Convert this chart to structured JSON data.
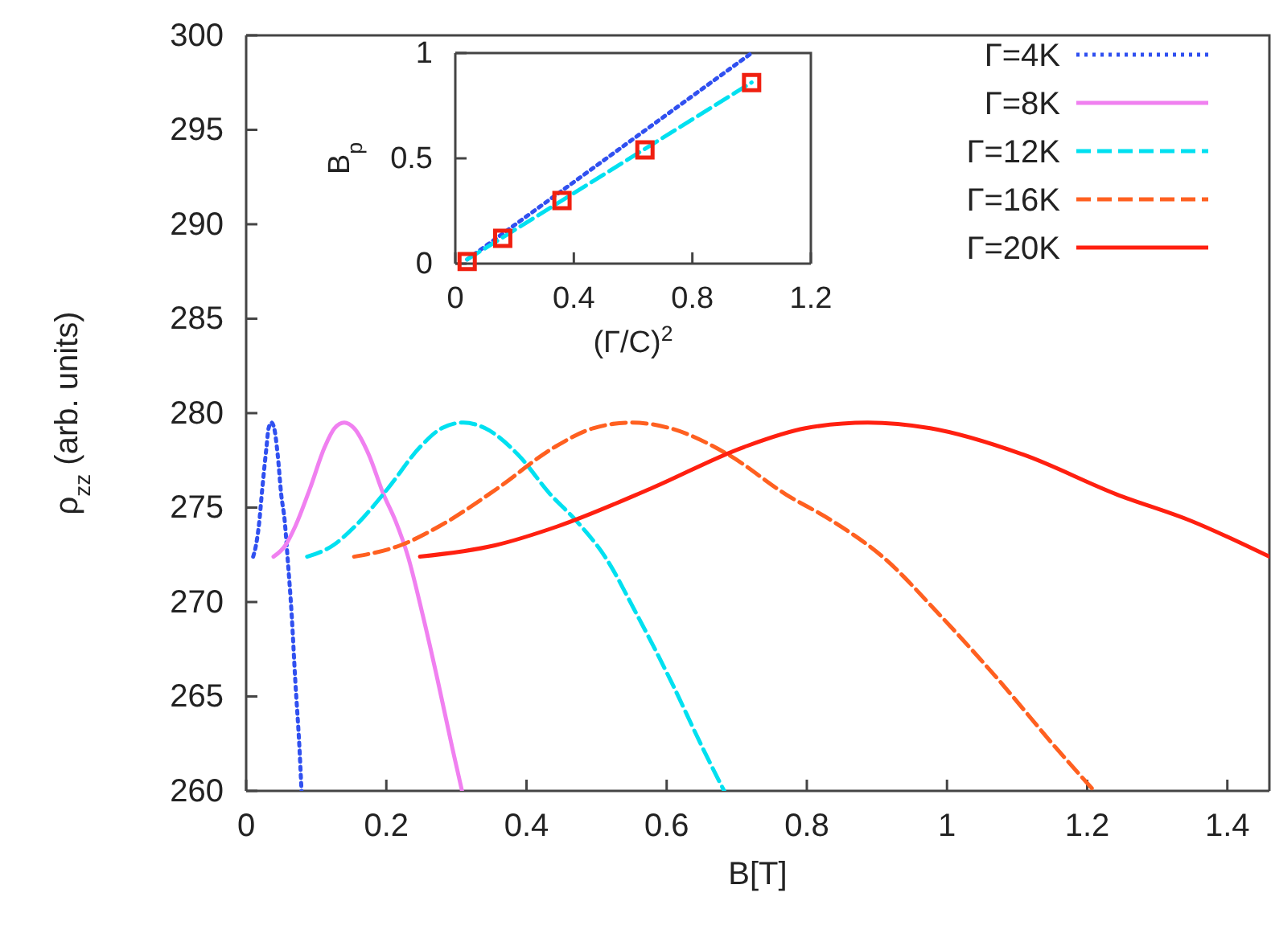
{
  "chart_data": [
    {
      "type": "line",
      "xlabel": "B[T]",
      "ylabel": "ρ$_{zz}$ (arb. units)",
      "xlim": [
        0,
        1.46
      ],
      "ylim": [
        260,
        300
      ],
      "xticks": [
        0,
        0.2,
        0.4,
        0.6,
        0.8,
        1,
        1.2,
        1.4
      ],
      "yticks": [
        260,
        265,
        270,
        275,
        280,
        285,
        290,
        295,
        300
      ],
      "legend": "top right",
      "series": [
        {
          "name": "Γ=4K",
          "color": "#3050f0",
          "line_style": "dotted",
          "x": [
            0.01,
            0.014,
            0.018,
            0.023,
            0.029,
            0.032,
            0.036,
            0.04,
            0.045,
            0.05,
            0.055,
            0.059,
            0.065,
            0.07,
            0.076,
            0.079
          ],
          "values": [
            272.4,
            273.0,
            274.0,
            276.0,
            278.2,
            279.2,
            279.5,
            279.2,
            277.8,
            275.7,
            274.3,
            272.4,
            269.3,
            265.9,
            262.3,
            260
          ]
        },
        {
          "name": "Γ=8K",
          "color": "#f080f0",
          "line_style": "solid",
          "x": [
            0.039,
            0.056,
            0.07,
            0.091,
            0.112,
            0.126,
            0.14,
            0.154,
            0.175,
            0.196,
            0.213,
            0.231,
            0.252,
            0.273,
            0.294,
            0.308
          ],
          "values": [
            272.4,
            273.0,
            274.0,
            276.0,
            278.2,
            279.2,
            279.5,
            279.2,
            277.8,
            275.7,
            274.3,
            272.4,
            269.3,
            265.9,
            262.3,
            260
          ]
        },
        {
          "name": "Γ=12K",
          "color": "#00e0f0",
          "line_style": "dashed",
          "x": [
            0.087,
            0.124,
            0.155,
            0.202,
            0.248,
            0.279,
            0.31,
            0.341,
            0.388,
            0.434,
            0.471,
            0.512,
            0.558,
            0.605,
            0.651,
            0.682
          ],
          "values": [
            272.4,
            273.0,
            274.0,
            276.0,
            278.2,
            279.2,
            279.5,
            279.2,
            277.8,
            275.7,
            274.3,
            272.4,
            269.3,
            265.9,
            262.3,
            260
          ]
        },
        {
          "name": "Γ=16K",
          "color": "#ff6020",
          "line_style": "dashed",
          "x": [
            0.154,
            0.22,
            0.275,
            0.358,
            0.44,
            0.495,
            0.55,
            0.605,
            0.688,
            0.77,
            0.836,
            0.908,
            0.99,
            1.073,
            1.155,
            1.21
          ],
          "values": [
            272.4,
            273.0,
            274.0,
            276.0,
            278.2,
            279.2,
            279.5,
            279.2,
            277.8,
            275.7,
            274.3,
            272.4,
            269.3,
            265.9,
            262.3,
            260
          ]
        },
        {
          "name": "Γ=20K",
          "color": "#ff2010",
          "line_style": "solid",
          "x": [
            0.248,
            0.355,
            0.444,
            0.577,
            0.71,
            0.798,
            0.887,
            0.976,
            1.109,
            1.242,
            1.348,
            1.46
          ],
          "values": [
            272.4,
            273.0,
            274.0,
            276.0,
            278.2,
            279.2,
            279.5,
            279.2,
            277.8,
            275.7,
            274.3,
            272.4
          ]
        }
      ]
    },
    {
      "type": "line",
      "xlabel": "(Γ/C)$^{2}$",
      "ylabel": "B$_{p}$",
      "xlim": [
        0,
        1.2
      ],
      "ylim": [
        0,
        1
      ],
      "xticks": [
        0,
        0.4,
        0.8,
        1.2
      ],
      "yticks": [
        0,
        0.5,
        1
      ],
      "series": [
        {
          "color": "#3050f0",
          "line_style": "dotted",
          "x": [
            0.04,
            1.0
          ],
          "values": [
            0.02,
            1.0
          ]
        },
        {
          "color": "#00e0f0",
          "line_style": "dashed",
          "x": [
            0.04,
            1.0
          ],
          "values": [
            0.02,
            0.86
          ]
        },
        {
          "type": "scatter",
          "marker": "square",
          "color": "#f02010",
          "x": [
            0.04,
            0.16,
            0.36,
            0.64,
            1.0
          ],
          "values": [
            0.01,
            0.12,
            0.3,
            0.54,
            0.86
          ]
        }
      ]
    }
  ]
}
